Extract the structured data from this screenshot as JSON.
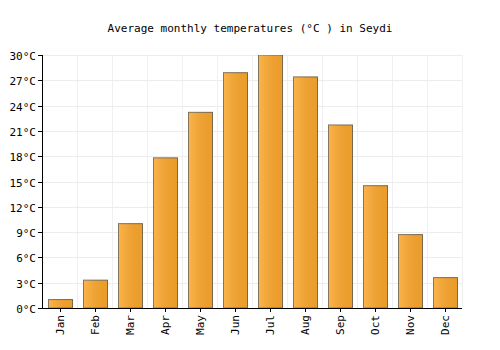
{
  "chart_data": {
    "type": "bar",
    "title": "Average monthly temperatures (°C ) in Seydi",
    "categories": [
      "Jan",
      "Feb",
      "Mar",
      "Apr",
      "May",
      "Jun",
      "Jul",
      "Aug",
      "Sep",
      "Oct",
      "Nov",
      "Dec"
    ],
    "values": [
      1.0,
      3.3,
      10.0,
      17.8,
      23.2,
      27.9,
      30.0,
      27.4,
      21.7,
      14.5,
      8.7,
      3.6
    ],
    "color": "#fba72c",
    "ylim": [
      0,
      30
    ],
    "yticks": [
      {
        "value": 0,
        "label": "0°C"
      },
      {
        "value": 3,
        "label": "3°C"
      },
      {
        "value": 6,
        "label": "6°C"
      },
      {
        "value": 9,
        "label": "9°C"
      },
      {
        "value": 12,
        "label": "12°C"
      },
      {
        "value": 15,
        "label": "15°C"
      },
      {
        "value": 18,
        "label": "18°C"
      },
      {
        "value": 21,
        "label": "21°C"
      },
      {
        "value": 24,
        "label": "24°C"
      },
      {
        "value": 27,
        "label": "27°C"
      },
      {
        "value": 30,
        "label": "30°C"
      }
    ],
    "grid": true
  }
}
